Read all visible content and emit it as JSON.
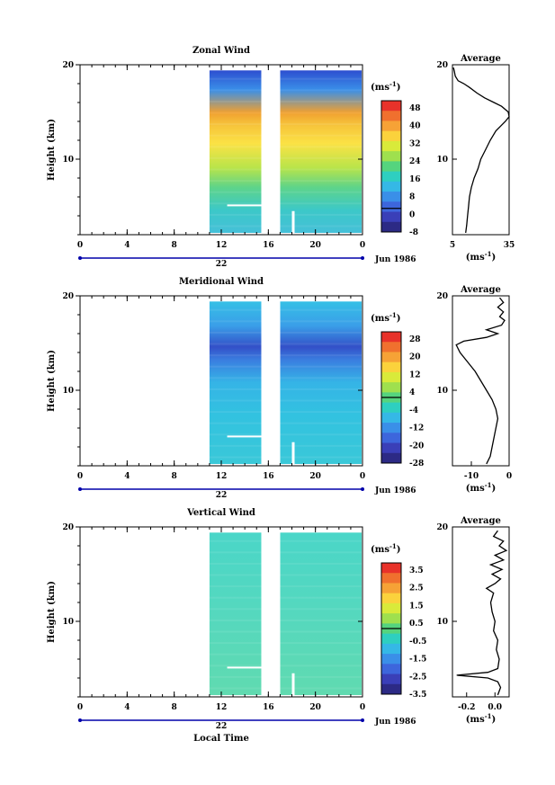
{
  "figure": {
    "xlabel": "Local Time",
    "date_label": "Jun 1986",
    "day_label": "22",
    "unit_label": "(ms",
    "unit_exp": "-1",
    "unit_close": ")"
  },
  "chart_data": [
    {
      "type": "heatmap",
      "title": "Zonal Wind",
      "ylabel": "Height (km)",
      "xlabel": "",
      "x_ticks": [
        "0",
        "4",
        "8",
        "12",
        "16",
        "20",
        "0"
      ],
      "y_ticks": [
        "20",
        "10"
      ],
      "xlim": [
        0,
        24
      ],
      "ylim": [
        2,
        20
      ],
      "colorbar": {
        "labels": [
          "48",
          "40",
          "32",
          "24",
          "16",
          "8",
          "0",
          "-8"
        ],
        "colors": [
          "#e8322a",
          "#f0702e",
          "#f6a236",
          "#fbd23c",
          "#d9ea3a",
          "#9fe04e",
          "#55d47e",
          "#2ecfc0",
          "#35b8e6",
          "#3a8fe8",
          "#3d66dc",
          "#3a3fb8",
          "#2c2a85"
        ],
        "zero_label": "0"
      },
      "average": {
        "title": "Average",
        "xlabel": "(ms",
        "x_ticks": [
          "5",
          "35"
        ],
        "xlim": [
          5,
          35
        ],
        "y_ticks": [
          "20",
          "10"
        ],
        "profile": [
          [
            12,
            2.2
          ],
          [
            12.5,
            3
          ],
          [
            13,
            4
          ],
          [
            13.5,
            5
          ],
          [
            14,
            6
          ],
          [
            15,
            7
          ],
          [
            16.5,
            8
          ],
          [
            18.5,
            9
          ],
          [
            20,
            10
          ],
          [
            22.5,
            11
          ],
          [
            25,
            12
          ],
          [
            28,
            13
          ],
          [
            30.5,
            13.5
          ],
          [
            33,
            14
          ],
          [
            35,
            14.5
          ],
          [
            34.5,
            15
          ],
          [
            31,
            15.6
          ],
          [
            27,
            16
          ],
          [
            22,
            16.5
          ],
          [
            18,
            17
          ],
          [
            14,
            17.6
          ],
          [
            11,
            18
          ],
          [
            8,
            18.3
          ],
          [
            6.5,
            18.8
          ],
          [
            6,
            19.3
          ],
          [
            5.5,
            19.7
          ]
        ]
      }
    },
    {
      "type": "heatmap",
      "title": "Meridional Wind",
      "ylabel": "Height (km)",
      "xlabel": "",
      "x_ticks": [
        "0",
        "4",
        "8",
        "12",
        "16",
        "20",
        "0"
      ],
      "y_ticks": [
        "20",
        "10"
      ],
      "xlim": [
        0,
        24
      ],
      "ylim": [
        2,
        20
      ],
      "colorbar": {
        "labels": [
          "28",
          "20",
          "12",
          "4",
          "-4",
          "-12",
          "-20",
          "-28"
        ],
        "colors": [
          "#e8322a",
          "#f0702e",
          "#f6a236",
          "#fbd23c",
          "#d9ea3a",
          "#9fe04e",
          "#55d47e",
          "#2ecfc0",
          "#35b8e6",
          "#3a8fe8",
          "#3d66dc",
          "#3a3fb8",
          "#2c2a85"
        ],
        "zero_label": "0"
      },
      "average": {
        "title": "Average",
        "xlabel": "(ms",
        "x_ticks": [
          "-10",
          "0"
        ],
        "xlim": [
          -15,
          0
        ],
        "y_ticks": [
          "20",
          "10"
        ],
        "profile": [
          [
            -6,
            2.2
          ],
          [
            -5,
            3
          ],
          [
            -4.5,
            4
          ],
          [
            -4,
            5
          ],
          [
            -3.5,
            6
          ],
          [
            -3,
            7
          ],
          [
            -3.5,
            8
          ],
          [
            -4.5,
            9
          ],
          [
            -6,
            10
          ],
          [
            -7.5,
            11
          ],
          [
            -9,
            12
          ],
          [
            -11,
            13
          ],
          [
            -13,
            14
          ],
          [
            -14,
            14.8
          ],
          [
            -12,
            15.2
          ],
          [
            -6,
            15.6
          ],
          [
            -3,
            16
          ],
          [
            -6,
            16.4
          ],
          [
            -2,
            16.9
          ],
          [
            -1.2,
            17.4
          ],
          [
            -2.5,
            17.8
          ],
          [
            -1.5,
            18.3
          ],
          [
            -3,
            18.8
          ],
          [
            -1.5,
            19.3
          ],
          [
            -2.5,
            19.8
          ]
        ]
      }
    },
    {
      "type": "heatmap",
      "title": "Vertical Wind",
      "ylabel": "Height (km)",
      "xlabel": "Local Time",
      "x_ticks": [
        "0",
        "4",
        "8",
        "12",
        "16",
        "20",
        "0"
      ],
      "y_ticks": [
        "20",
        "10"
      ],
      "xlim": [
        0,
        24
      ],
      "ylim": [
        2,
        20
      ],
      "colorbar": {
        "labels": [
          "3.5",
          "2.5",
          "1.5",
          "0.5",
          "-0.5",
          "-1.5",
          "-2.5",
          "-3.5"
        ],
        "colors": [
          "#e8322a",
          "#f0702e",
          "#f6a236",
          "#fbd23c",
          "#d9ea3a",
          "#9fe04e",
          "#55d47e",
          "#2ecfc0",
          "#35b8e6",
          "#3a8fe8",
          "#3d66dc",
          "#3a3fb8",
          "#2c2a85"
        ],
        "zero_label": "0"
      },
      "average": {
        "title": "Average",
        "xlabel": "(ms",
        "x_ticks": [
          "-0.2",
          "0.0"
        ],
        "xlim": [
          -0.3,
          0.1
        ],
        "y_ticks": [
          "20",
          "10"
        ],
        "profile": [
          [
            0.02,
            2.2
          ],
          [
            0.04,
            3
          ],
          [
            0.02,
            3.6
          ],
          [
            -0.05,
            4.0
          ],
          [
            -0.27,
            4.3
          ],
          [
            -0.05,
            4.6
          ],
          [
            0.02,
            5
          ],
          [
            0.03,
            6
          ],
          [
            0.01,
            7
          ],
          [
            0.02,
            8
          ],
          [
            -0.01,
            9
          ],
          [
            0.0,
            10
          ],
          [
            -0.02,
            11
          ],
          [
            -0.03,
            12
          ],
          [
            -0.01,
            13
          ],
          [
            -0.06,
            13.5
          ],
          [
            0.0,
            14
          ],
          [
            0.04,
            14.5
          ],
          [
            -0.02,
            15
          ],
          [
            0.05,
            15.5
          ],
          [
            -0.03,
            16
          ],
          [
            0.06,
            16.5
          ],
          [
            0.0,
            17
          ],
          [
            0.08,
            17.5
          ],
          [
            0.03,
            18
          ],
          [
            0.06,
            18.5
          ],
          [
            -0.01,
            19
          ],
          [
            0.02,
            19.6
          ]
        ]
      }
    }
  ]
}
